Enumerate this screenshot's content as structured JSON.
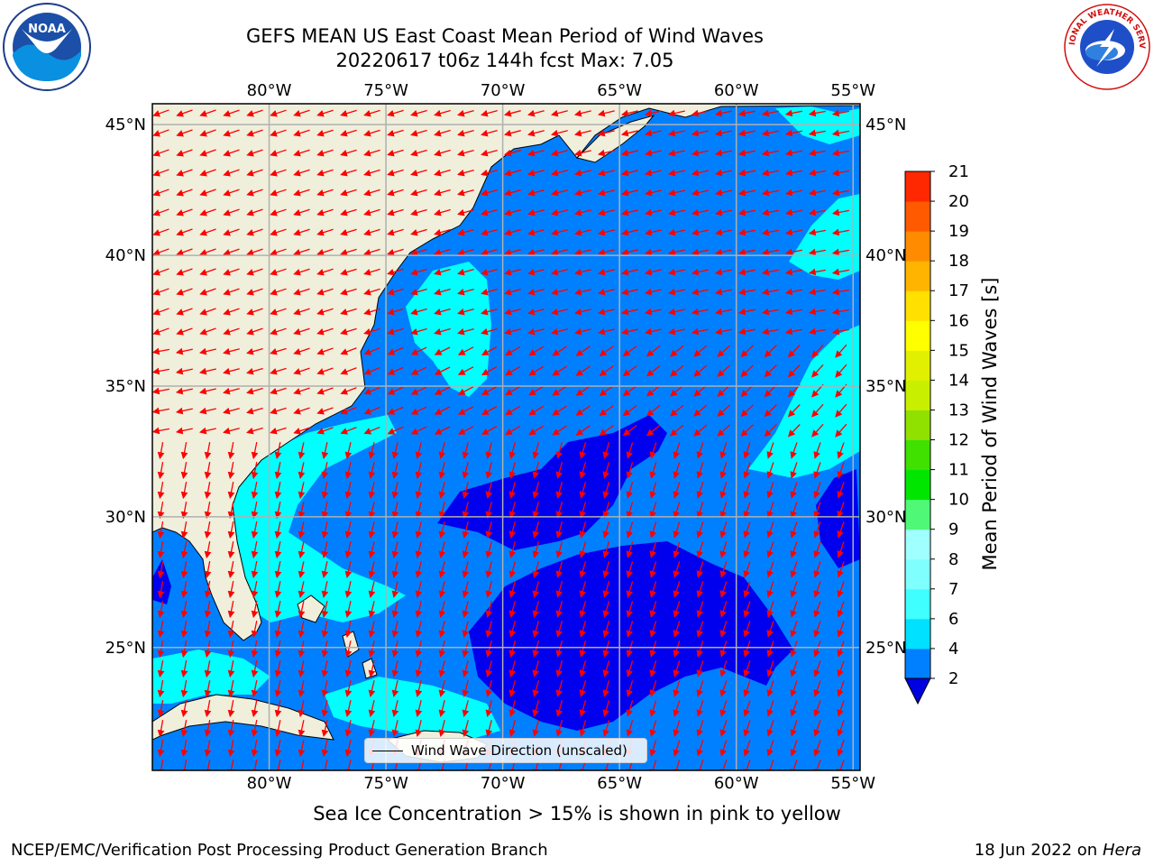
{
  "header": {
    "title_line1": "GEFS MEAN US East Coast Mean Period of Wind Waves",
    "title_line2": "20220617 t06z 144h fcst   Max: 7.05"
  },
  "logos": {
    "left": "noaa-logo",
    "left_text": "NOAA",
    "right": "nws-logo",
    "right_text": "NATIONAL WEATHER SERVICE"
  },
  "map": {
    "lon_labels": [
      "80°W",
      "75°W",
      "70°W",
      "65°W",
      "60°W",
      "55°W"
    ],
    "lat_labels": [
      "45°N",
      "40°N",
      "35°N",
      "30°N",
      "25°N"
    ],
    "lon_values": [
      -80,
      -75,
      -70,
      -65,
      -60,
      -55
    ],
    "lat_values": [
      45,
      40,
      35,
      30,
      25
    ],
    "lon_range": [
      -85,
      -54.7
    ],
    "lat_range": [
      20.3,
      45.8
    ],
    "colors": {
      "land": "#efefdc",
      "ocean_base": "#0080ff",
      "low_period": "#0000ee",
      "mid_period": "#00f0f0",
      "high_period": "#00ffff",
      "arrow": "#ff0000",
      "grid": "#b0b0b0"
    },
    "legend_label": "Wind Wave Direction (unscaled)"
  },
  "colorbar": {
    "label": "Mean Period of Wind Waves [s]",
    "ticks": [
      "2",
      "4",
      "6",
      "7",
      "8",
      "9",
      "10",
      "11",
      "12",
      "13",
      "14",
      "15",
      "16",
      "17",
      "18",
      "19",
      "20",
      "21"
    ],
    "colors": [
      "#0080ff",
      "#00e0ff",
      "#40ffff",
      "#80ffff",
      "#a0ffff",
      "#50f878",
      "#00e600",
      "#40e000",
      "#90e000",
      "#c8ef00",
      "#e0f000",
      "#ffff00",
      "#ffe000",
      "#ffb400",
      "#ff8c00",
      "#ff5a00",
      "#ff2800",
      "#ff0000"
    ],
    "extend_color": "#0000e0"
  },
  "footer": {
    "note": "Sea Ice Concentration > 15% is shown in pink to yellow",
    "credit": "NCEP/EMC/Verification Post Processing Product Generation Branch",
    "date": "18 Jun 2022 on",
    "machine": "Hera"
  }
}
